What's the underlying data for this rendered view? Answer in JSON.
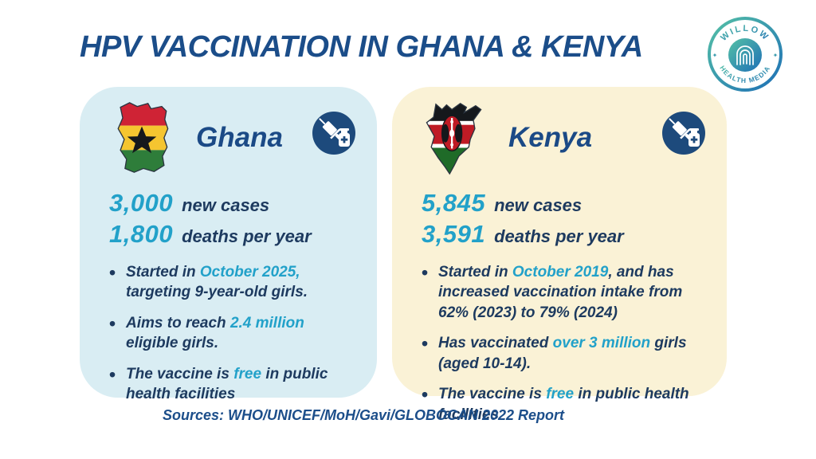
{
  "page": {
    "title": "HPV VACCINATION IN GHANA & KENYA",
    "sources": "Sources: WHO/UNICEF/MoH/Gavi/GLOBOCAN 2022 Report"
  },
  "logo": {
    "top_text": "WILLOW",
    "bottom_text": "HEALTH MEDIA",
    "sparkle": "✦"
  },
  "colors": {
    "title_blue": "#1b4d89",
    "body_navy": "#1d3a5f",
    "highlight_cyan": "#22a1c9",
    "ghana_card_bg": "#d9edf3",
    "kenya_card_bg": "#faf2d6",
    "icon_circle_navy": "#1d4a7c",
    "logo_gradient_start": "#55c1a6",
    "logo_gradient_end": "#1e6fb6"
  },
  "countries": [
    {
      "name": "Ghana",
      "stats": [
        {
          "value": "3,000",
          "label": "new cases"
        },
        {
          "value": "1,800",
          "label": "deaths per year"
        }
      ],
      "bullets": [
        [
          {
            "t": "Started in "
          },
          {
            "t": "October 2025,",
            "c": "hl"
          },
          {
            "t": " targeting 9-year-old girls."
          }
        ],
        [
          {
            "t": "Aims to reach "
          },
          {
            "t": "2.4 million",
            "c": "hl"
          },
          {
            "t": " eligible girls."
          }
        ],
        [
          {
            "t": "The vaccine is "
          },
          {
            "t": "free",
            "c": "hl"
          },
          {
            "t": " in public health facilities"
          }
        ]
      ]
    },
    {
      "name": "Kenya",
      "stats": [
        {
          "value": "5,845",
          "label": "new cases"
        },
        {
          "value": "3,591",
          "label": "deaths per year"
        }
      ],
      "bullets": [
        [
          {
            "t": "Started in "
          },
          {
            "t": "October 2019",
            "c": "hl"
          },
          {
            "t": ", and has increased vaccination intake from "
          },
          {
            "t": "62% (2023) to 79% (2024)",
            "c": "b"
          }
        ],
        [
          {
            "t": "Has vaccinated "
          },
          {
            "t": "over 3 million",
            "c": "hl"
          },
          {
            "t": " girls "
          },
          {
            "t": "(aged 10-14).",
            "c": "b"
          }
        ],
        [
          {
            "t": "The vaccine is "
          },
          {
            "t": "free",
            "c": "hl"
          },
          {
            "t": " in public health facilities"
          }
        ]
      ]
    }
  ]
}
